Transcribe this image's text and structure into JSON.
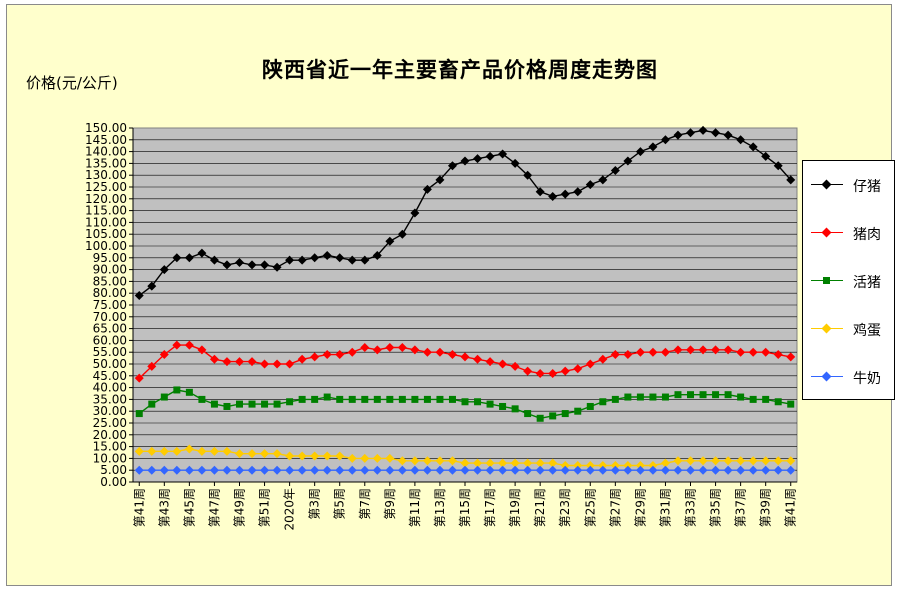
{
  "page": {
    "title": "陕西省近一年主要畜产品价格周度走势图",
    "y_axis_label": "价格(元/公斤)"
  },
  "chart_data": {
    "type": "line",
    "title": "陕西省近一年主要畜产品价格周度走势图",
    "ylabel": "价格(元/公斤)",
    "xlabel": "",
    "ylim": [
      0,
      150
    ],
    "ytick_step": 5,
    "grid": true,
    "legend_position": "right",
    "plot_background": "#c0c0c0",
    "categories": [
      "第41周",
      "第42周",
      "第43周",
      "第44周",
      "第45周",
      "第46周",
      "第47周",
      "第48周",
      "第49周",
      "第50周",
      "第51周",
      "第52周",
      "2020年",
      "第2周",
      "第3周",
      "第4周",
      "第5周",
      "第6周",
      "第7周",
      "第8周",
      "第9周",
      "第10周",
      "第11周",
      "第12周",
      "第13周",
      "第14周",
      "第15周",
      "第16周",
      "第17周",
      "第18周",
      "第19周",
      "第20周",
      "第21周",
      "第22周",
      "第23周",
      "第24周",
      "第25周",
      "第26周",
      "第27周",
      "第28周",
      "第29周",
      "第30周",
      "第31周",
      "第32周",
      "第33周",
      "第34周",
      "第35周",
      "第36周",
      "第37周",
      "第38周",
      "第39周",
      "第40周",
      "第41周"
    ],
    "tick_labels": [
      "第41周",
      "第43周",
      "第45周",
      "第47周",
      "第49周",
      "第51周",
      "2020年",
      "第3周",
      "第5周",
      "第7周",
      "第9周",
      "第11周",
      "第13周",
      "第15周",
      "第17周",
      "第19周",
      "第21周",
      "第23周",
      "第25周",
      "第27周",
      "第29周",
      "第31周",
      "第33周",
      "第35周",
      "第37周",
      "第39周",
      "第41周"
    ],
    "series": [
      {
        "name": "仔猪",
        "color": "#000000",
        "marker": "diamond",
        "values": [
          79,
          83,
          90,
          95,
          95,
          97,
          94,
          92,
          93,
          92,
          92,
          91,
          94,
          94,
          95,
          96,
          95,
          94,
          94,
          96,
          102,
          105,
          114,
          124,
          128,
          134,
          136,
          137,
          138,
          139,
          135,
          130,
          123,
          121,
          122,
          123,
          126,
          128,
          132,
          136,
          140,
          142,
          145,
          147,
          148,
          149,
          148,
          147,
          145,
          142,
          138,
          134,
          128
        ]
      },
      {
        "name": "猪肉",
        "color": "#ff0000",
        "marker": "diamond",
        "values": [
          44,
          49,
          54,
          58,
          58,
          56,
          52,
          51,
          51,
          51,
          50,
          50,
          50,
          52,
          53,
          54,
          54,
          55,
          57,
          56,
          57,
          57,
          56,
          55,
          55,
          54,
          53,
          52,
          51,
          50,
          49,
          47,
          46,
          46,
          47,
          48,
          50,
          52,
          54,
          54,
          55,
          55,
          55,
          56,
          56,
          56,
          56,
          56,
          55,
          55,
          55,
          54,
          53
        ]
      },
      {
        "name": "活猪",
        "color": "#008000",
        "marker": "square",
        "values": [
          29,
          33,
          36,
          39,
          38,
          35,
          33,
          32,
          33,
          33,
          33,
          33,
          34,
          35,
          35,
          36,
          35,
          35,
          35,
          35,
          35,
          35,
          35,
          35,
          35,
          35,
          34,
          34,
          33,
          32,
          31,
          29,
          27,
          28,
          29,
          30,
          32,
          34,
          35,
          36,
          36,
          36,
          36,
          37,
          37,
          37,
          37,
          37,
          36,
          35,
          35,
          34,
          33
        ]
      },
      {
        "name": "鸡蛋",
        "color": "#ffcc00",
        "marker": "diamond",
        "values": [
          13,
          13,
          13,
          13,
          14,
          13,
          13,
          13,
          12,
          12,
          12,
          12,
          11,
          11,
          11,
          11,
          11,
          10,
          10,
          10,
          10,
          9,
          9,
          9,
          9,
          9,
          8,
          8,
          8,
          8,
          8,
          8,
          8,
          8,
          7,
          7,
          7,
          7,
          7,
          7,
          7,
          7,
          8,
          9,
          9,
          9,
          9,
          9,
          9,
          9,
          9,
          9,
          9
        ]
      },
      {
        "name": "牛奶",
        "color": "#3366ff",
        "marker": "diamond",
        "values": [
          5,
          5,
          5,
          5,
          5,
          5,
          5,
          5,
          5,
          5,
          5,
          5,
          5,
          5,
          5,
          5,
          5,
          5,
          5,
          5,
          5,
          5,
          5,
          5,
          5,
          5,
          5,
          5,
          5,
          5,
          5,
          5,
          5,
          5,
          5,
          5,
          5,
          5,
          5,
          5,
          5,
          5,
          5,
          5,
          5,
          5,
          5,
          5,
          5,
          5,
          5,
          5,
          5
        ]
      }
    ]
  }
}
